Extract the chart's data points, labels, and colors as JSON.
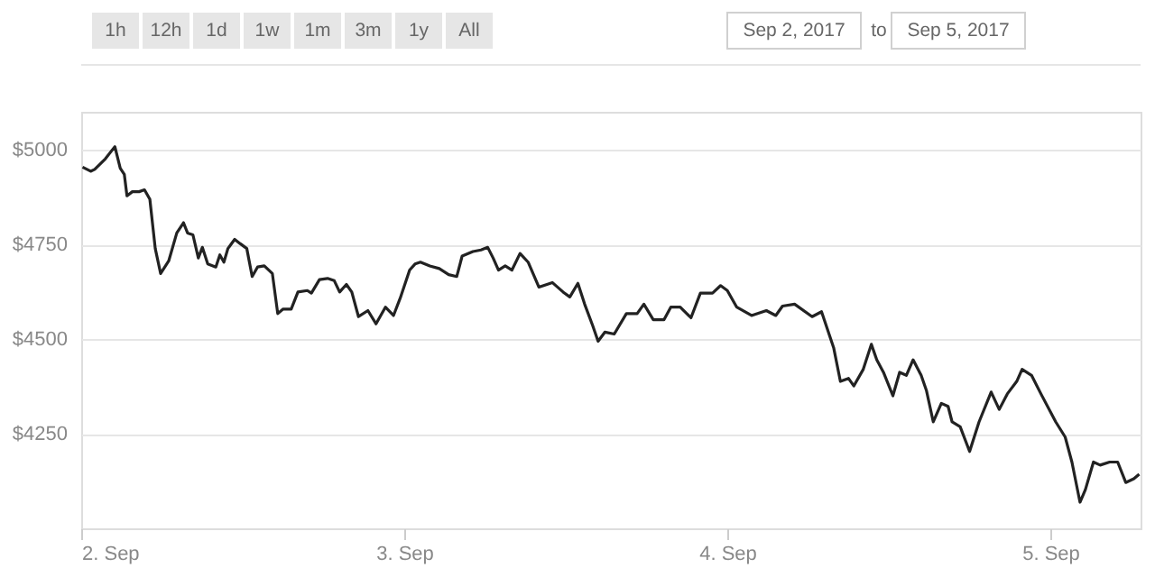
{
  "chart_data": {
    "type": "line",
    "annotations": [
      "1h",
      "12h",
      "1d",
      "1w",
      "1m",
      "3m",
      "1y",
      "All",
      "Sep 2, 2017",
      "to",
      "Sep 5, 2017"
    ],
    "x": [
      "2017-09-02T00:06",
      "2017-09-02T00:42",
      "2017-09-02T01:00",
      "2017-09-02T01:48",
      "2017-09-02T02:30",
      "2017-09-02T02:54",
      "2017-09-02T03:12",
      "2017-09-02T03:24",
      "2017-09-02T03:48",
      "2017-09-02T04:18",
      "2017-09-02T04:42",
      "2017-09-02T05:06",
      "2017-09-02T05:30",
      "2017-09-02T05:54",
      "2017-09-02T06:30",
      "2017-09-02T07:06",
      "2017-09-02T07:36",
      "2017-09-02T07:54",
      "2017-09-02T08:18",
      "2017-09-02T08:42",
      "2017-09-02T09:00",
      "2017-09-02T09:24",
      "2017-09-02T10:00",
      "2017-09-02T10:18",
      "2017-09-02T10:36",
      "2017-09-02T10:54",
      "2017-09-02T11:24",
      "2017-09-02T11:48",
      "2017-09-02T12:18",
      "2017-09-02T12:42",
      "2017-09-02T13:06",
      "2017-09-02T13:36",
      "2017-09-02T14:12",
      "2017-09-02T14:36",
      "2017-09-02T15:00",
      "2017-09-02T15:36",
      "2017-09-02T16:06",
      "2017-09-02T16:48",
      "2017-09-02T17:06",
      "2017-09-02T17:42",
      "2017-09-02T18:18",
      "2017-09-02T18:48",
      "2017-09-02T19:12",
      "2017-09-02T19:42",
      "2017-09-02T20:06",
      "2017-09-02T20:36",
      "2017-09-02T21:18",
      "2017-09-02T21:54",
      "2017-09-02T22:36",
      "2017-09-02T23:12",
      "2017-09-02T23:42",
      "2017-09-03T00:24",
      "2017-09-03T00:48",
      "2017-09-03T01:12",
      "2017-09-03T01:54",
      "2017-09-03T02:36",
      "2017-09-03T03:18",
      "2017-09-03T03:54",
      "2017-09-03T04:18",
      "2017-09-03T05:06",
      "2017-09-03T05:42",
      "2017-09-03T06:12",
      "2017-09-03T06:36",
      "2017-09-03T07:00",
      "2017-09-03T07:30",
      "2017-09-03T08:00",
      "2017-09-03T08:36",
      "2017-09-03T09:12",
      "2017-09-03T10:00",
      "2017-09-03T11:00",
      "2017-09-03T11:48",
      "2017-09-03T12:18",
      "2017-09-03T12:54",
      "2017-09-03T13:24",
      "2017-09-03T14:00",
      "2017-09-03T14:24",
      "2017-09-03T14:54",
      "2017-09-03T15:36",
      "2017-09-03T16:30",
      "2017-09-03T17:18",
      "2017-09-03T17:48",
      "2017-09-03T18:30",
      "2017-09-03T19:18",
      "2017-09-03T19:48",
      "2017-09-03T20:30",
      "2017-09-03T21:18",
      "2017-09-03T22:00",
      "2017-09-03T22:54",
      "2017-09-03T23:30",
      "2017-09-04T00:00",
      "2017-09-04T00:42",
      "2017-09-04T01:48",
      "2017-09-04T02:54",
      "2017-09-04T03:36",
      "2017-09-04T04:06",
      "2017-09-04T05:00",
      "2017-09-04T06:18",
      "2017-09-04T07:00",
      "2017-09-04T07:54",
      "2017-09-04T08:24",
      "2017-09-04T09:00",
      "2017-09-04T09:24",
      "2017-09-04T10:06",
      "2017-09-04T10:42",
      "2017-09-04T11:06",
      "2017-09-04T11:36",
      "2017-09-04T12:18",
      "2017-09-04T12:48",
      "2017-09-04T13:18",
      "2017-09-04T13:48",
      "2017-09-04T14:24",
      "2017-09-04T14:48",
      "2017-09-04T15:18",
      "2017-09-04T15:54",
      "2017-09-04T16:24",
      "2017-09-04T16:42",
      "2017-09-04T17:18",
      "2017-09-04T18:00",
      "2017-09-04T18:42",
      "2017-09-04T19:36",
      "2017-09-04T20:12",
      "2017-09-04T20:48",
      "2017-09-04T21:30",
      "2017-09-04T21:54",
      "2017-09-04T22:36",
      "2017-09-04T23:18",
      "2017-09-05T00:24",
      "2017-09-05T01:06",
      "2017-09-05T01:36",
      "2017-09-05T02:12",
      "2017-09-05T02:36",
      "2017-09-05T03:12",
      "2017-09-05T03:42",
      "2017-09-05T04:24",
      "2017-09-05T05:00",
      "2017-09-05T05:36",
      "2017-09-05T06:12",
      "2017-09-05T06:36"
    ],
    "series": [
      {
        "color": "#222222",
        "values": [
          4954,
          4943,
          4948,
          4976,
          5008,
          4951,
          4935,
          4878,
          4889,
          4889,
          4894,
          4869,
          4739,
          4673,
          4706,
          4780,
          4807,
          4780,
          4775,
          4714,
          4742,
          4698,
          4690,
          4722,
          4703,
          4739,
          4763,
          4752,
          4739,
          4665,
          4690,
          4693,
          4673,
          4567,
          4579,
          4579,
          4624,
          4628,
          4621,
          4657,
          4660,
          4654,
          4624,
          4644,
          4624,
          4559,
          4575,
          4540,
          4584,
          4562,
          4608,
          4682,
          4698,
          4703,
          4693,
          4686,
          4670,
          4665,
          4719,
          4731,
          4735,
          4742,
          4714,
          4682,
          4693,
          4682,
          4726,
          4703,
          4637,
          4649,
          4624,
          4611,
          4647,
          4592,
          4535,
          4494,
          4518,
          4513,
          4567,
          4567,
          4592,
          4551,
          4551,
          4584,
          4584,
          4556,
          4621,
          4621,
          4641,
          4628,
          4584,
          4562,
          4575,
          4562,
          4587,
          4592,
          4559,
          4572,
          4477,
          4388,
          4396,
          4376,
          4420,
          4486,
          4445,
          4412,
          4350,
          4412,
          4404,
          4445,
          4404,
          4363,
          4281,
          4330,
          4322,
          4281,
          4268,
          4203,
          4281,
          4360,
          4314,
          4355,
          4388,
          4420,
          4404,
          4355,
          4281,
          4241,
          4175,
          4069,
          4102,
          4175,
          4167,
          4175,
          4175,
          4121,
          4131,
          4143
        ]
      }
    ],
    "xlim": [
      "2017-09-02T00:00",
      "2017-09-05T06:42"
    ],
    "xticks": [
      {
        "value": "2017-09-02T00:00",
        "label": "2. Sep"
      },
      {
        "value": "2017-09-03T00:00",
        "label": "3. Sep"
      },
      {
        "value": "2017-09-04T00:00",
        "label": "4. Sep"
      },
      {
        "value": "2017-09-05T00:00",
        "label": "5. Sep"
      }
    ],
    "ylim": [
      4000,
      5100
    ],
    "yticks": [
      {
        "value": 4250,
        "label": "$4250"
      },
      {
        "value": 4500,
        "label": "$4500"
      },
      {
        "value": 4750,
        "label": "$4750"
      },
      {
        "value": 5000,
        "label": "$5000"
      }
    ],
    "grid": "y",
    "marker": "none",
    "line_style": "solid"
  }
}
